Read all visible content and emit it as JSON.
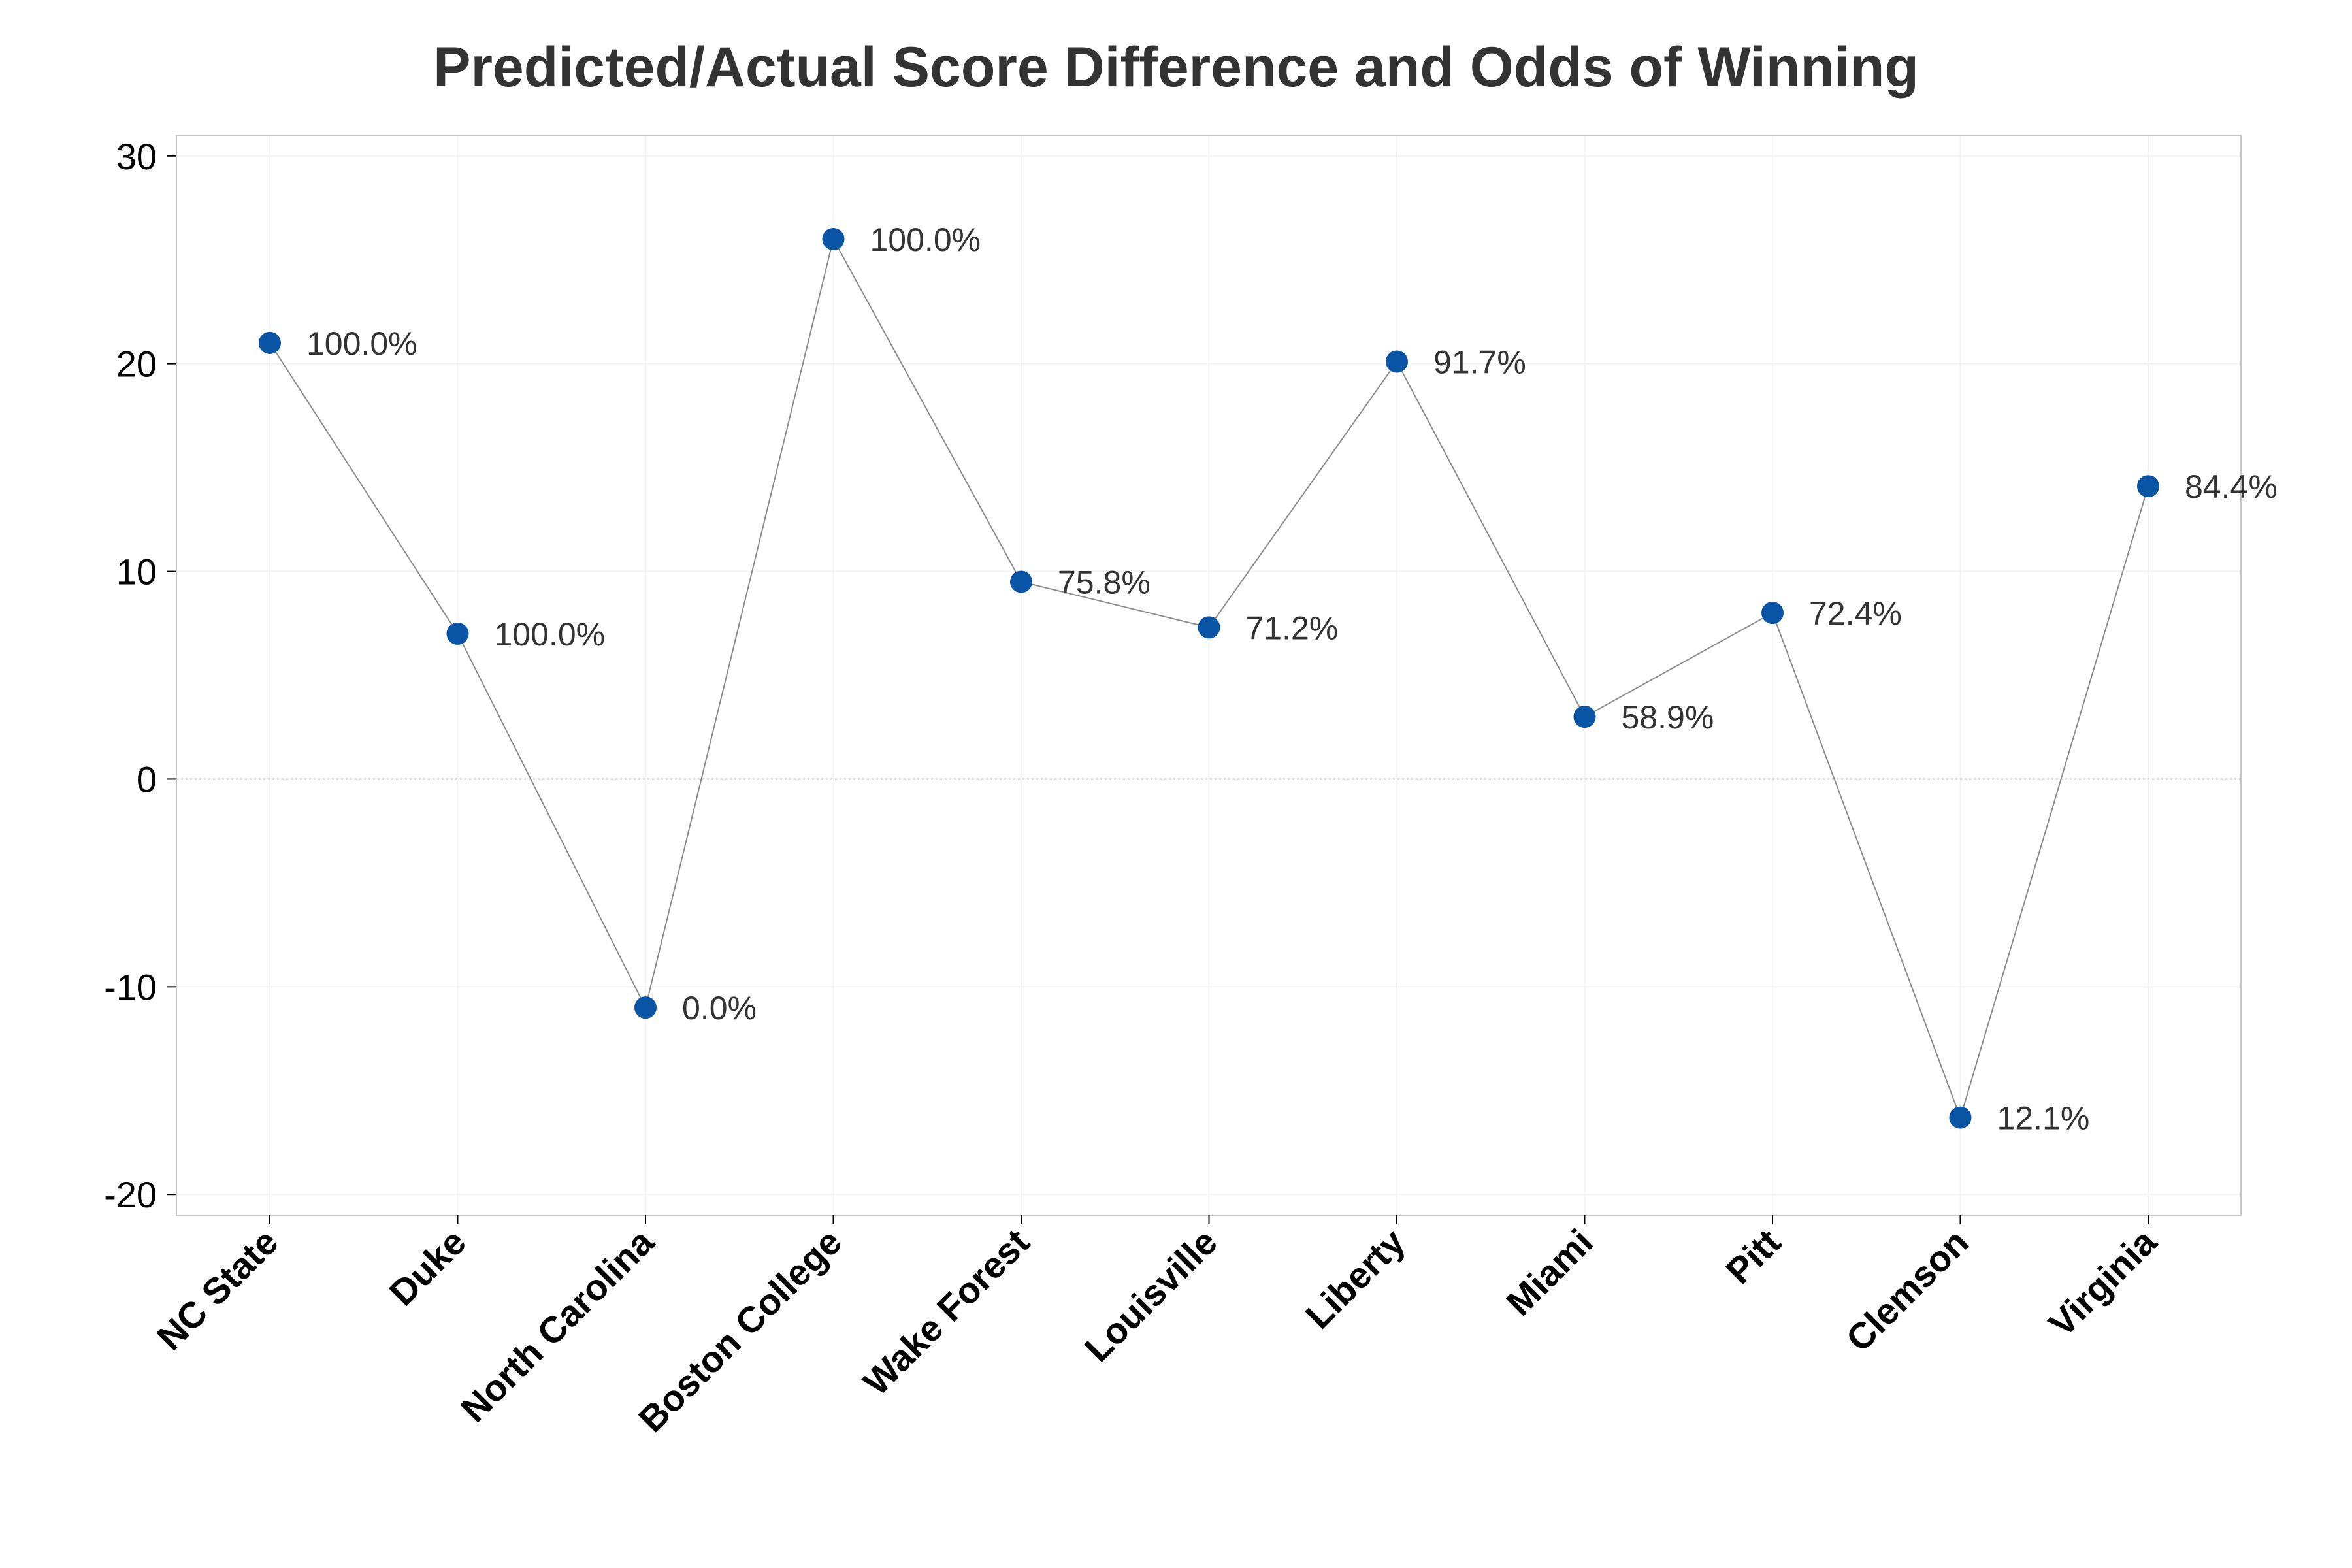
{
  "chart_data": {
    "type": "line",
    "title": "Predicted/Actual Score Difference and Odds of Winning",
    "xlabel": "",
    "ylabel": "",
    "categories": [
      "NC State",
      "Duke",
      "North Carolina",
      "Boston College",
      "Wake Forest",
      "Louisville",
      "Liberty",
      "Miami",
      "Pitt",
      "Clemson",
      "Virginia"
    ],
    "series": [
      {
        "values": [
          21,
          7,
          -11,
          26,
          9.5,
          7.3,
          20.1,
          3,
          8,
          -16.3,
          14.1
        ],
        "data_labels": [
          "100.0%",
          "100.0%",
          "0.0%",
          "100.0%",
          "75.8%",
          "71.2%",
          "91.7%",
          "58.9%",
          "72.4%",
          "12.1%",
          "84.4%"
        ]
      }
    ],
    "ylim": [
      -21,
      31
    ],
    "yticks": [
      -20,
      -10,
      0,
      10,
      20,
      30
    ],
    "ytick_labels": [
      "-20",
      "-10",
      "0",
      "10",
      "20",
      "30"
    ],
    "reference_line_y": 0,
    "grid": true,
    "legend": "none",
    "colors": {
      "marker": "#0a54a5",
      "line": "#8c8c8c",
      "frame": "#c8c8c8",
      "grid": "#f3f3f3",
      "reference_line": "#c0c0c0",
      "title": "#333333",
      "label": "#333333"
    }
  }
}
